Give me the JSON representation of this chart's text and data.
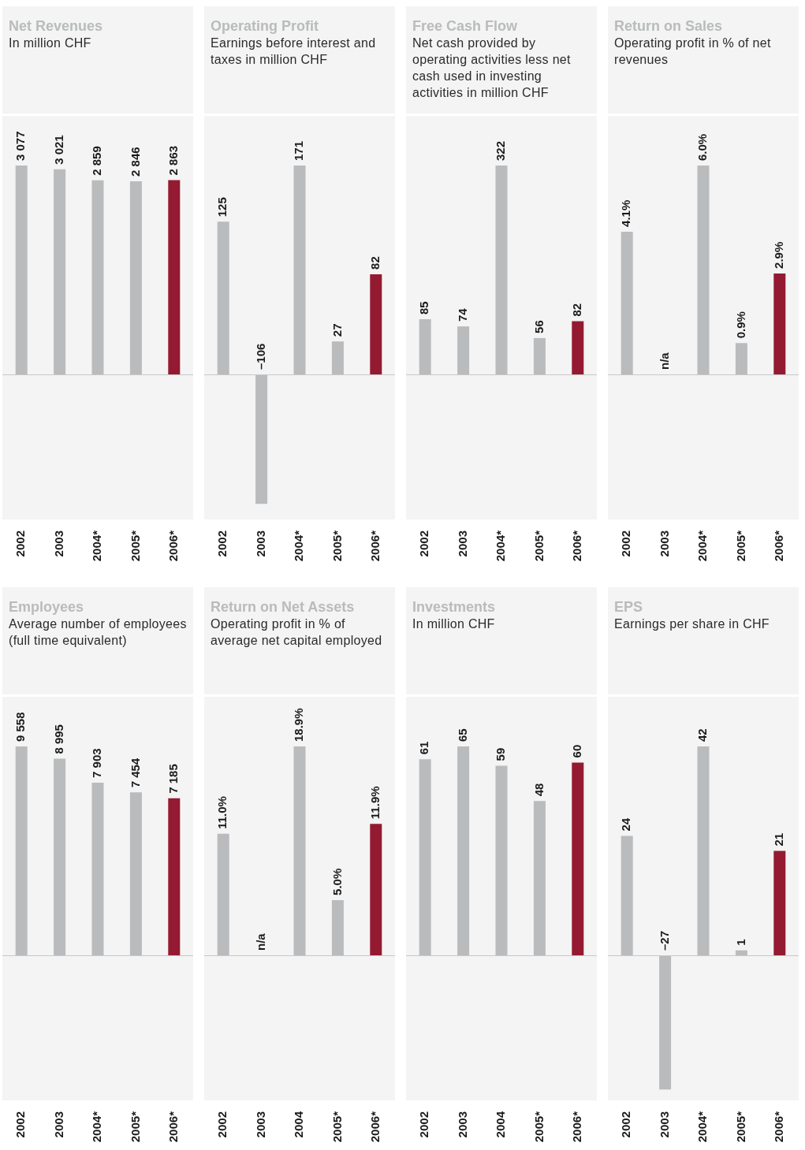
{
  "chart_data": [
    {
      "type": "bar",
      "title": "Net Revenues",
      "subtitle": "In million CHF",
      "categories": [
        "2002",
        "2003",
        "2004*",
        "2005*",
        "2006*"
      ],
      "values": [
        3077,
        3021,
        2859,
        2846,
        2863
      ],
      "colors": [
        "#b9bbbd",
        "#b9bbbd",
        "#b9bbbd",
        "#b9bbbd",
        "#941a31"
      ],
      "value_labels": [
        "3 077",
        "3 021",
        "2 859",
        "2 846",
        "2 863"
      ]
    },
    {
      "type": "bar",
      "title": "Operating Profit",
      "subtitle": "Earnings before interest and taxes in million CHF",
      "categories": [
        "2002",
        "2003",
        "2004*",
        "2005*",
        "2006*"
      ],
      "values": [
        125,
        -106,
        171,
        27,
        82
      ],
      "colors": [
        "#b9bbbd",
        "#b9bbbd",
        "#b9bbbd",
        "#b9bbbd",
        "#941a31"
      ],
      "value_labels": [
        "125",
        "–106",
        "171",
        "27",
        "82"
      ]
    },
    {
      "type": "bar",
      "title": "Free Cash Flow",
      "subtitle": "Net cash provided by operating activities less net cash used in investing activities in million CHF",
      "categories": [
        "2002",
        "2003",
        "2004*",
        "2005*",
        "2006*"
      ],
      "values": [
        85,
        74,
        322,
        56,
        82
      ],
      "colors": [
        "#b9bbbd",
        "#b9bbbd",
        "#b9bbbd",
        "#b9bbbd",
        "#941a31"
      ],
      "value_labels": [
        "85",
        "74",
        "322",
        "56",
        "82"
      ]
    },
    {
      "type": "bar",
      "title": "Return on Sales",
      "subtitle": "Operating profit in % of net revenues",
      "categories": [
        "2002",
        "2003",
        "2004*",
        "2005*",
        "2006*"
      ],
      "values": [
        4.1,
        null,
        6.0,
        0.9,
        2.9
      ],
      "colors": [
        "#b9bbbd",
        "#b9bbbd",
        "#b9bbbd",
        "#b9bbbd",
        "#941a31"
      ],
      "value_labels": [
        "4.1%",
        "n/a",
        "6.0%",
        "0.9%",
        "2.9%"
      ]
    },
    {
      "type": "bar",
      "title": "Employees",
      "subtitle": "Average number of employees (full time equivalent)",
      "categories": [
        "2002",
        "2003",
        "2004*",
        "2005*",
        "2006*"
      ],
      "values": [
        9558,
        8995,
        7903,
        7454,
        7185
      ],
      "colors": [
        "#b9bbbd",
        "#b9bbbd",
        "#b9bbbd",
        "#b9bbbd",
        "#941a31"
      ],
      "value_labels": [
        "9 558",
        "8 995",
        "7 903",
        "7 454",
        "7 185"
      ]
    },
    {
      "type": "bar",
      "title": "Return on Net Assets",
      "subtitle": "Operating profit in % of average net capital employed",
      "categories": [
        "2002",
        "2003",
        "2004",
        "2005*",
        "2006*"
      ],
      "values": [
        11.0,
        null,
        18.9,
        5.0,
        11.9
      ],
      "colors": [
        "#b9bbbd",
        "#b9bbbd",
        "#b9bbbd",
        "#b9bbbd",
        "#941a31"
      ],
      "value_labels": [
        "11.0%",
        "n/a",
        "18.9%",
        "5.0%",
        "11.9%"
      ]
    },
    {
      "type": "bar",
      "title": "Investments",
      "subtitle": "In million CHF",
      "categories": [
        "2002",
        "2003",
        "2004",
        "2005*",
        "2006*"
      ],
      "values": [
        61,
        65,
        59,
        48,
        60
      ],
      "colors": [
        "#b9bbbd",
        "#b9bbbd",
        "#b9bbbd",
        "#b9bbbd",
        "#941a31"
      ],
      "value_labels": [
        "61",
        "65",
        "59",
        "48",
        "60"
      ]
    },
    {
      "type": "bar",
      "title": "EPS",
      "subtitle": "Earnings per share in CHF",
      "categories": [
        "2002",
        "2003",
        "2004*",
        "2005*",
        "2006*"
      ],
      "values": [
        24,
        -27,
        42,
        1,
        21
      ],
      "colors": [
        "#b9bbbd",
        "#b9bbbd",
        "#b9bbbd",
        "#b9bbbd",
        "#941a31"
      ],
      "value_labels": [
        "24",
        "–27",
        "42",
        "1",
        "21"
      ]
    }
  ]
}
